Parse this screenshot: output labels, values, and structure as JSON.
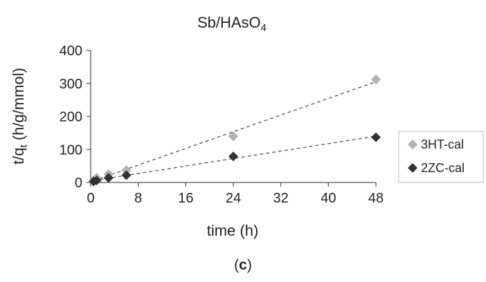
{
  "chart_data": {
    "type": "scatter",
    "title": "Sb/HAsO",
    "title_subscript": "4",
    "xlabel": "time (h)",
    "ylabel": "t/q",
    "ylabel_subscript": "t",
    "ylabel_suffix": " (h/g/mmol)",
    "xlim": [
      0,
      48
    ],
    "ylim": [
      0,
      400
    ],
    "xticks": [
      0,
      8,
      16,
      24,
      32,
      40,
      48
    ],
    "yticks": [
      0,
      100,
      200,
      300,
      400
    ],
    "grid": false,
    "legend_position": "right",
    "series": [
      {
        "name": "3HT-cal",
        "color": "#b3b3b3",
        "marker": "diamond",
        "trendline": "linear",
        "x": [
          0.5,
          1,
          3,
          6,
          24,
          48
        ],
        "y": [
          6,
          14,
          25,
          37,
          140,
          312
        ]
      },
      {
        "name": "2ZC-cal",
        "color": "#333333",
        "marker": "diamond",
        "trendline": "linear",
        "x": [
          0.5,
          1,
          3,
          6,
          24,
          48
        ],
        "y": [
          3,
          6,
          14,
          22,
          79,
          137
        ]
      }
    ]
  },
  "panel_label": "c",
  "panel_open": "(",
  "panel_close": ")"
}
